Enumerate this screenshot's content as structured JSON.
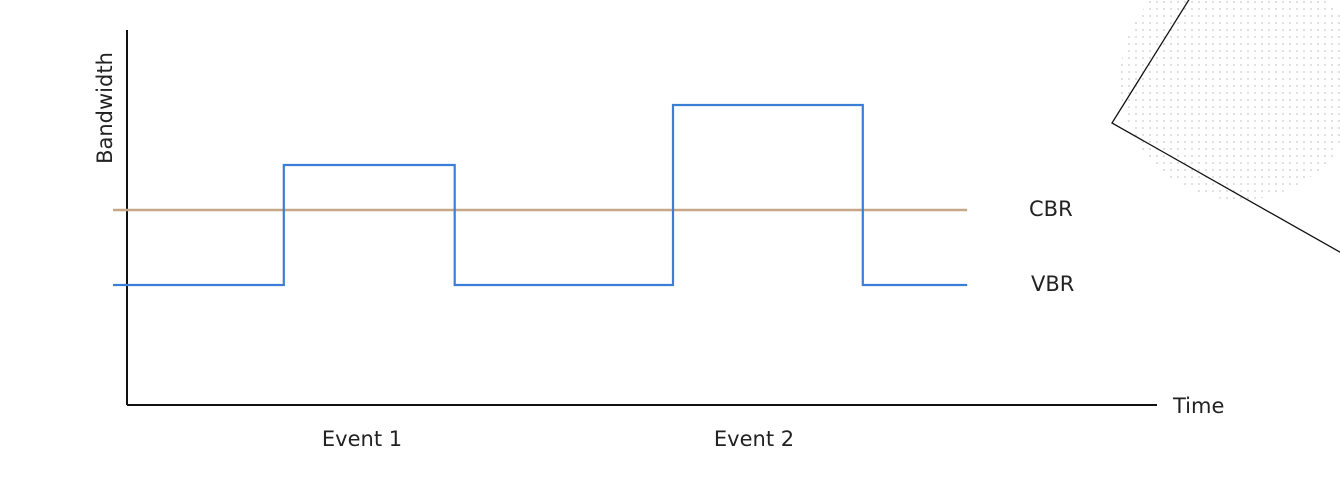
{
  "chart_data": {
    "type": "line",
    "xlabel": "Time",
    "ylabel": "Bandwidth",
    "events": [
      "Event 1",
      "Event 2"
    ],
    "series": [
      {
        "name": "CBR",
        "color": "#c4a887",
        "step": false,
        "points": [
          [
            0,
            2.6
          ],
          [
            9,
            2.6
          ]
        ]
      },
      {
        "name": "VBR",
        "color": "#3a7fd5",
        "step": true,
        "points": [
          [
            0,
            1.6
          ],
          [
            1.8,
            1.6
          ],
          [
            1.8,
            3.2
          ],
          [
            3.6,
            3.2
          ],
          [
            3.6,
            1.6
          ],
          [
            5.9,
            1.6
          ],
          [
            5.9,
            4.0
          ],
          [
            7.9,
            4.0
          ],
          [
            7.9,
            1.6
          ],
          [
            9,
            1.6
          ]
        ]
      }
    ],
    "xlim": [
      0,
      11
    ],
    "ylim": [
      0,
      5
    ],
    "grid": false,
    "legend": "labels at right end of lines"
  },
  "colors": {
    "axis": "#111111",
    "text": "#222222",
    "decoration_dots": "#c9c9c9",
    "decoration_line": "#111111"
  },
  "decoration": {
    "icon": "dotted-circle-with-triangle-lines"
  }
}
